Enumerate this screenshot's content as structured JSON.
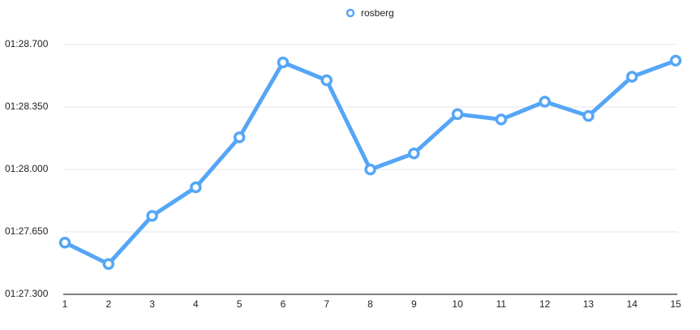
{
  "chart_data": {
    "type": "line",
    "x": [
      1,
      2,
      3,
      4,
      5,
      6,
      7,
      8,
      9,
      10,
      11,
      12,
      13,
      14,
      15
    ],
    "series": [
      {
        "name": "rosberg",
        "color": "#55a6f6",
        "values": [
          87.59,
          87.47,
          87.74,
          87.9,
          88.18,
          88.6,
          88.5,
          88.0,
          88.09,
          88.31,
          88.28,
          88.38,
          88.3,
          88.52,
          88.61
        ]
      }
    ],
    "xlim": [
      1,
      15
    ],
    "xticks": [
      1,
      2,
      3,
      4,
      5,
      6,
      7,
      8,
      9,
      10,
      11,
      12,
      13,
      14,
      15
    ],
    "ylim": [
      87.3,
      88.7
    ],
    "yticks": [
      {
        "value": 87.3,
        "label": "01:27.300"
      },
      {
        "value": 87.65,
        "label": "01:27.650"
      },
      {
        "value": 88.0,
        "label": "01:28.000"
      },
      {
        "value": 88.35,
        "label": "01:28.350"
      },
      {
        "value": 88.7,
        "label": "01:28.700"
      }
    ],
    "grid": true,
    "legend": "top"
  }
}
